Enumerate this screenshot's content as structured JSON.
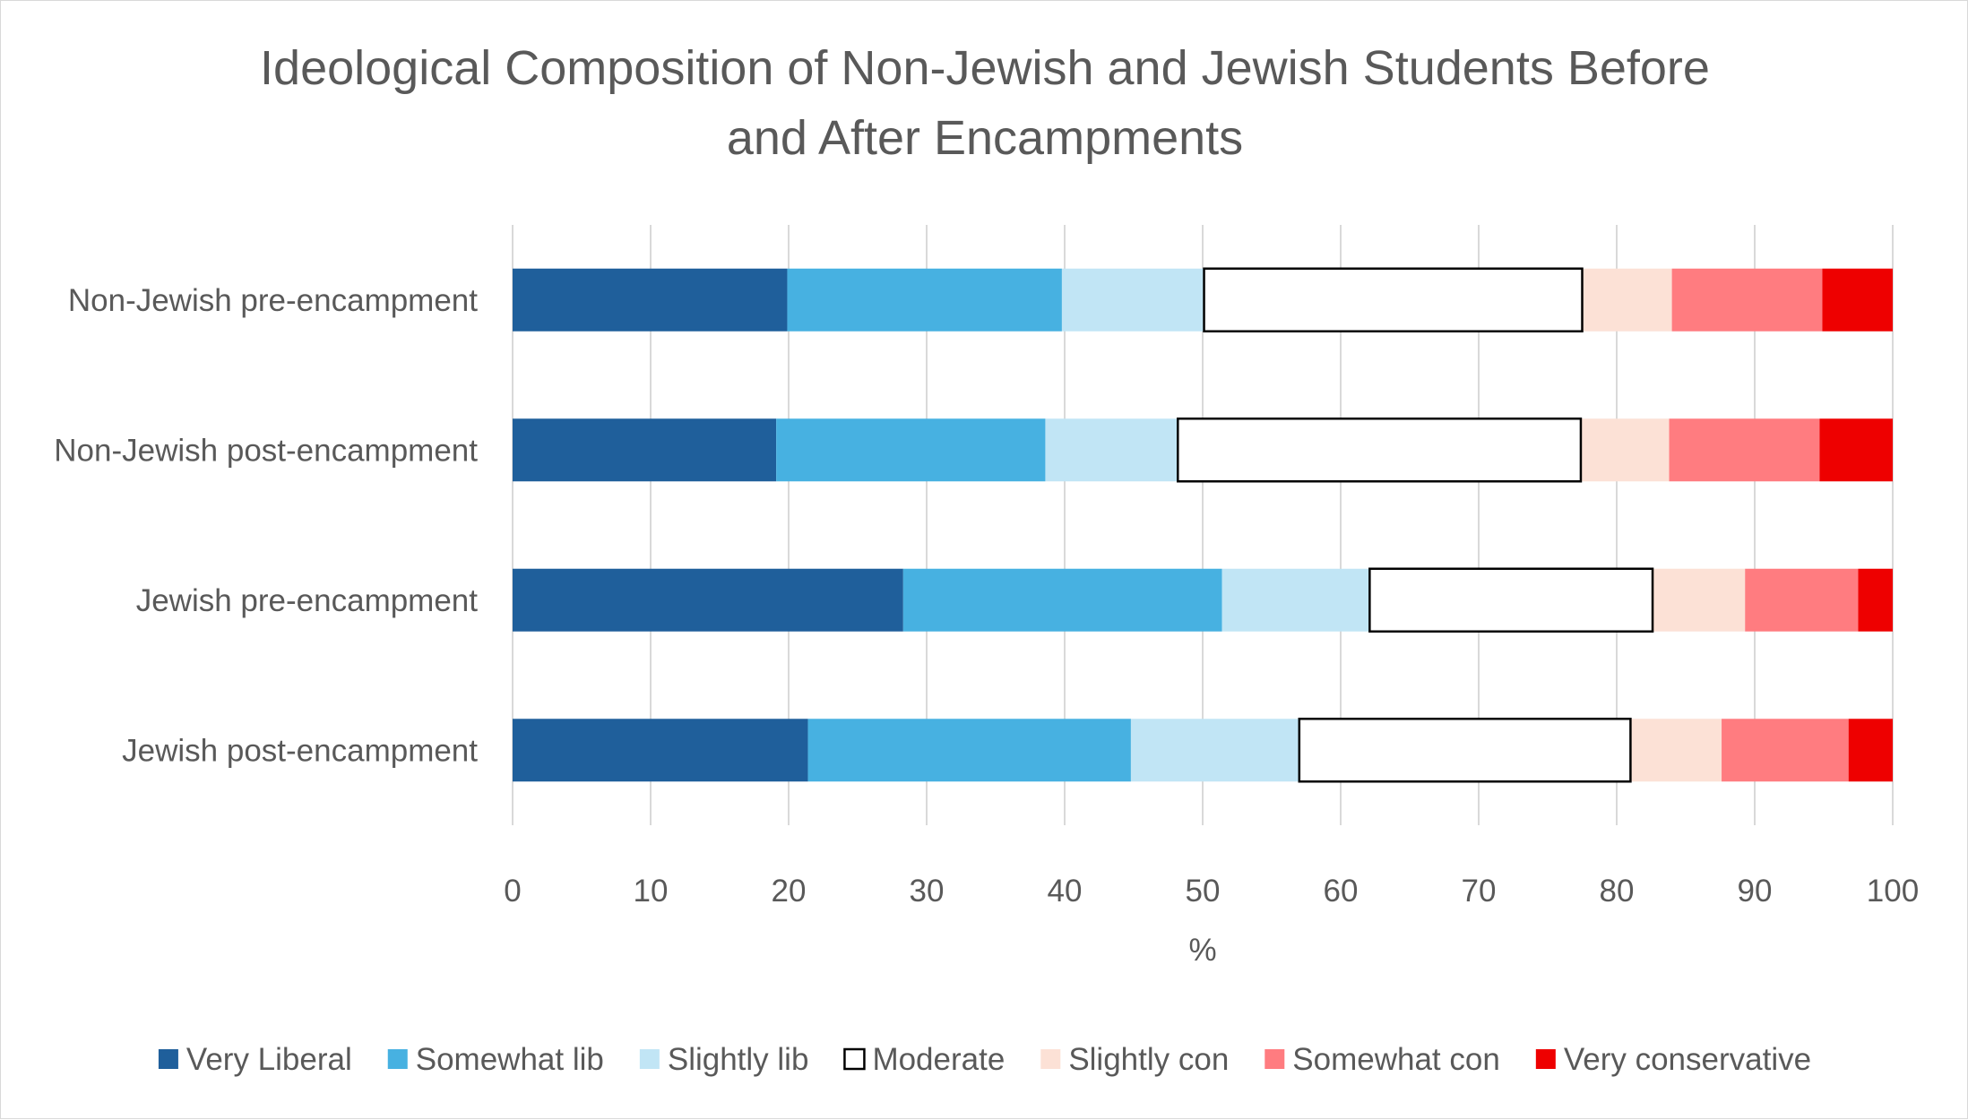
{
  "chart_data": {
    "type": "bar",
    "orientation": "horizontal",
    "stacked": true,
    "title": "Ideological Composition of Non-Jewish and Jewish Students Before and After Encampments",
    "title_lines": [
      "Ideological Composition of Non-Jewish and Jewish Students Before",
      "and After Encampments"
    ],
    "xlabel": "%",
    "ylabel": "",
    "xlim": [
      0,
      100
    ],
    "xticks": [
      0,
      10,
      20,
      30,
      40,
      50,
      60,
      70,
      80,
      90,
      100
    ],
    "grid": true,
    "legend_position": "bottom",
    "categories": [
      "Non-Jewish pre-encampment",
      "Non-Jewish post-encampment",
      "Jewish pre-encampment",
      "Jewish post-encampment"
    ],
    "series": [
      {
        "name": "Very Liberal",
        "color": "#1f5f9b",
        "values": [
          19.9,
          19.1,
          28.3,
          21.4
        ]
      },
      {
        "name": "Somewhat lib",
        "color": "#47b1e1",
        "values": [
          19.9,
          19.5,
          23.1,
          23.4
        ]
      },
      {
        "name": "Slightly lib",
        "color": "#c1e5f5",
        "values": [
          10.3,
          9.6,
          10.7,
          12.2
        ]
      },
      {
        "name": "Moderate",
        "color": "#ffffff",
        "outline": "#000000",
        "values": [
          27.4,
          29.2,
          20.5,
          24.0
        ]
      },
      {
        "name": "Slightly con",
        "color": "#fce1d6",
        "values": [
          6.5,
          6.4,
          6.7,
          6.6
        ]
      },
      {
        "name": "Somewhat con",
        "color": "#ff7c80",
        "values": [
          10.9,
          10.9,
          8.2,
          9.2
        ]
      },
      {
        "name": "Very conservative",
        "color": "#ee0000",
        "values": [
          5.1,
          5.3,
          2.5,
          3.2
        ]
      }
    ]
  }
}
